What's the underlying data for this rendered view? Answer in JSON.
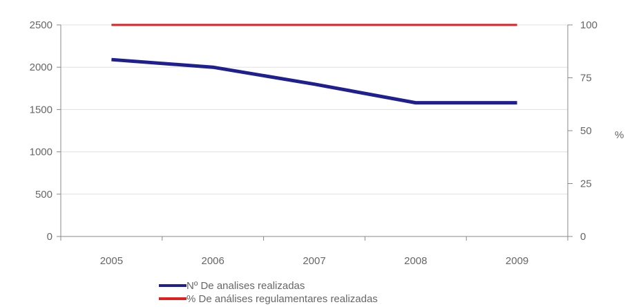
{
  "chart_data": {
    "type": "line",
    "categories": [
      "2005",
      "2006",
      "2007",
      "2008",
      "2009"
    ],
    "y_left": {
      "ticks": [
        "0",
        "500",
        "1000",
        "1500",
        "2000",
        "2500"
      ],
      "range": [
        0,
        2500
      ]
    },
    "y_right": {
      "ticks": [
        "0",
        "25",
        "50",
        "75",
        "100"
      ],
      "range": [
        0,
        100
      ],
      "label": "%"
    },
    "grid": true,
    "legend_position": "bottom",
    "series": [
      {
        "name": "Nº De analises realizadas",
        "axis": "left",
        "color": "#1f1f8f",
        "values": [
          2090,
          2000,
          1800,
          1580,
          1580
        ]
      },
      {
        "name": "% De análises regulamentares realizadas",
        "axis": "right",
        "color": "#e02020",
        "values": [
          100,
          100,
          100,
          100,
          100
        ]
      }
    ]
  }
}
